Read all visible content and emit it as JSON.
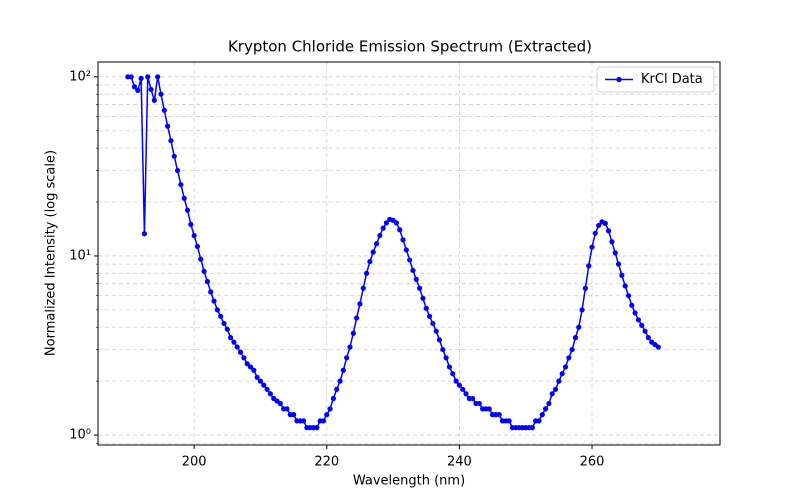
{
  "chart_data": {
    "type": "line",
    "title": "Krypton Chloride Emission Spectrum (Extracted)",
    "x_label": "Wavelength (nm)",
    "y_label": "Normalized Intensity (log scale)",
    "log_y": true,
    "grid": true,
    "legend": "upper right",
    "xlim": [
      185.5,
      279.3
    ],
    "ylim": [
      0.88,
      121
    ],
    "xticks": [
      200,
      220,
      240,
      260
    ],
    "yticks": [
      {
        "value": 1,
        "label": "10⁰"
      },
      {
        "value": 10,
        "label": "10¹"
      },
      {
        "value": 100,
        "label": "10²"
      }
    ],
    "yminorticks": [
      0.9,
      2,
      3,
      4,
      5,
      6,
      7,
      8,
      9,
      20,
      30,
      40,
      50,
      60,
      70,
      80,
      90
    ],
    "x": [
      190,
      190.5,
      191,
      191.5,
      192,
      192.5,
      193,
      193.5,
      194,
      194.5,
      195,
      195.5,
      196,
      196.5,
      197,
      197.5,
      198,
      198.5,
      199,
      199.5,
      200,
      200.5,
      201,
      201.5,
      202,
      202.5,
      203,
      203.5,
      204,
      204.5,
      205,
      205.5,
      206,
      206.5,
      207,
      207.5,
      208,
      208.5,
      209,
      209.5,
      210,
      210.5,
      211,
      211.5,
      212,
      212.5,
      213,
      213.5,
      214,
      214.5,
      215,
      215.5,
      216,
      216.5,
      217,
      217.5,
      218,
      218.5,
      219,
      219.5,
      220,
      220.5,
      221,
      221.5,
      222,
      222.5,
      223,
      223.5,
      224,
      224.5,
      225,
      225.5,
      226,
      226.5,
      227,
      227.5,
      228,
      228.5,
      229,
      229.5,
      230,
      230.5,
      231,
      231.5,
      232,
      232.5,
      233,
      233.5,
      234,
      234.5,
      235,
      235.5,
      236,
      236.5,
      237,
      237.5,
      238,
      238.5,
      239,
      239.5,
      240,
      240.5,
      241,
      241.5,
      242,
      242.5,
      243,
      243.5,
      244,
      244.5,
      245,
      245.5,
      246,
      246.5,
      247,
      247.5,
      248,
      248.5,
      249,
      249.5,
      250,
      250.5,
      251,
      251.5,
      252,
      252.5,
      253,
      253.5,
      254,
      254.5,
      255,
      255.5,
      256,
      256.5,
      257,
      257.5,
      258,
      258.5,
      259,
      259.5,
      260,
      260.5,
      261,
      261.5,
      262,
      262.5,
      263,
      263.5,
      264,
      264.5,
      265,
      265.5,
      266,
      266.5,
      267,
      267.5,
      268,
      268.5,
      269,
      269.5,
      270
    ],
    "series": [
      {
        "name": "KrCl Data",
        "color": "#0000ff",
        "values": [
          100,
          100,
          88,
          84,
          98,
          13.3,
          100,
          85,
          74,
          100,
          80,
          65,
          53,
          44,
          36,
          30,
          25,
          21,
          18,
          15,
          13,
          11.3,
          9.6,
          8.2,
          7.2,
          6.3,
          5.6,
          5.0,
          4.6,
          4.2,
          3.9,
          3.5,
          3.3,
          3.1,
          2.9,
          2.7,
          2.5,
          2.4,
          2.3,
          2.1,
          2.0,
          1.9,
          1.8,
          1.7,
          1.6,
          1.55,
          1.5,
          1.4,
          1.4,
          1.3,
          1.3,
          1.2,
          1.2,
          1.2,
          1.1,
          1.1,
          1.1,
          1.1,
          1.2,
          1.2,
          1.3,
          1.4,
          1.6,
          1.8,
          2.0,
          2.3,
          2.7,
          3.1,
          3.7,
          4.5,
          5.4,
          6.6,
          8.0,
          9.3,
          10.5,
          11.7,
          13.0,
          14.3,
          15.3,
          16.0,
          15.8,
          15.3,
          14.0,
          12.3,
          10.8,
          9.5,
          8.3,
          7.4,
          6.6,
          5.8,
          5.1,
          4.6,
          4.2,
          3.8,
          3.4,
          3.0,
          2.7,
          2.4,
          2.2,
          2.0,
          1.9,
          1.8,
          1.7,
          1.6,
          1.6,
          1.5,
          1.5,
          1.4,
          1.4,
          1.4,
          1.3,
          1.3,
          1.3,
          1.2,
          1.2,
          1.2,
          1.1,
          1.1,
          1.1,
          1.1,
          1.1,
          1.1,
          1.1,
          1.2,
          1.2,
          1.3,
          1.4,
          1.5,
          1.7,
          1.8,
          2.0,
          2.2,
          2.4,
          2.7,
          3.0,
          3.5,
          4.0,
          5.0,
          6.6,
          8.8,
          11.2,
          13.4,
          14.8,
          15.5,
          15.2,
          13.8,
          12.0,
          10.4,
          9.0,
          7.8,
          6.8,
          6.0,
          5.3,
          4.8,
          4.4,
          4.1,
          3.8,
          3.5,
          3.3,
          3.2,
          3.1
        ]
      }
    ]
  }
}
